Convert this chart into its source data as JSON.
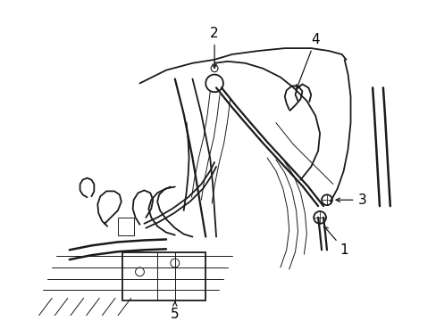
{
  "bg_color": "#ffffff",
  "line_color": "#1a1a1a",
  "fig_width": 4.89,
  "fig_height": 3.6,
  "dpi": 100,
  "label_fs": 11,
  "lw_main": 1.3,
  "lw_thin": 0.7,
  "lw_belt": 1.6
}
